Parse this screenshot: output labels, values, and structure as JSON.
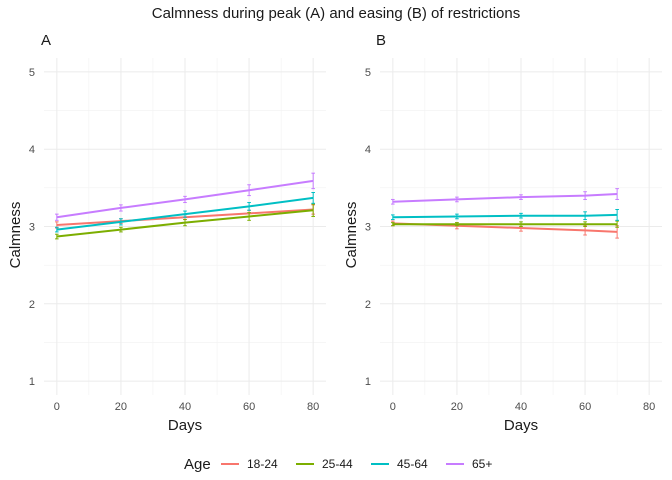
{
  "figure": {
    "title": "Calmness during peak (A) and easing (B) of restrictions"
  },
  "legend": {
    "title": "Age",
    "position": "bottom",
    "entries": [
      {
        "name": "18-24",
        "color": "#F8766D"
      },
      {
        "name": "25-44",
        "color": "#7CAE00"
      },
      {
        "name": "45-64",
        "color": "#00BFC4"
      },
      {
        "name": "65+",
        "color": "#C77CFF"
      }
    ]
  },
  "chart_data": [
    {
      "type": "line",
      "panel": "A",
      "xlabel": "Days",
      "ylabel": "Calmness",
      "xlim": [
        -4,
        84
      ],
      "ylim": [
        0.82,
        5.18
      ],
      "xticks": [
        0,
        20,
        40,
        60,
        80
      ],
      "yticks": [
        1,
        2,
        3,
        4,
        5
      ],
      "grid": true,
      "x": [
        0,
        20,
        40,
        60,
        80
      ],
      "series": [
        {
          "name": "18-24",
          "values": [
            3.02,
            3.07,
            3.12,
            3.17,
            3.22
          ],
          "err": [
            0.04,
            0.03,
            0.03,
            0.04,
            0.06
          ]
        },
        {
          "name": "25-44",
          "values": [
            2.87,
            2.96,
            3.05,
            3.13,
            3.21
          ],
          "err": [
            0.03,
            0.03,
            0.04,
            0.05,
            0.08
          ]
        },
        {
          "name": "45-64",
          "values": [
            2.96,
            3.06,
            3.16,
            3.26,
            3.37
          ],
          "err": [
            0.03,
            0.04,
            0.04,
            0.05,
            0.07
          ]
        },
        {
          "name": "65+",
          "values": [
            3.12,
            3.24,
            3.35,
            3.47,
            3.59
          ],
          "err": [
            0.04,
            0.04,
            0.04,
            0.07,
            0.1
          ]
        }
      ]
    },
    {
      "type": "line",
      "panel": "B",
      "xlabel": "Days",
      "ylabel": "Calmness",
      "xlim": [
        -4,
        84
      ],
      "ylim": [
        0.82,
        5.18
      ],
      "xticks": [
        0,
        20,
        40,
        60,
        80
      ],
      "yticks": [
        1,
        2,
        3,
        4,
        5
      ],
      "grid": true,
      "x": [
        0,
        20,
        40,
        60,
        70
      ],
      "series": [
        {
          "name": "18-24",
          "values": [
            3.04,
            3.01,
            2.98,
            2.95,
            2.93
          ],
          "err": [
            0.03,
            0.04,
            0.04,
            0.06,
            0.08
          ]
        },
        {
          "name": "25-44",
          "values": [
            3.03,
            3.03,
            3.03,
            3.03,
            3.03
          ],
          "err": [
            0.02,
            0.02,
            0.03,
            0.03,
            0.04
          ]
        },
        {
          "name": "45-64",
          "values": [
            3.12,
            3.13,
            3.14,
            3.14,
            3.15
          ],
          "err": [
            0.03,
            0.03,
            0.03,
            0.05,
            0.07
          ]
        },
        {
          "name": "65+",
          "values": [
            3.32,
            3.35,
            3.38,
            3.4,
            3.42
          ],
          "err": [
            0.03,
            0.03,
            0.03,
            0.05,
            0.07
          ]
        }
      ]
    }
  ]
}
